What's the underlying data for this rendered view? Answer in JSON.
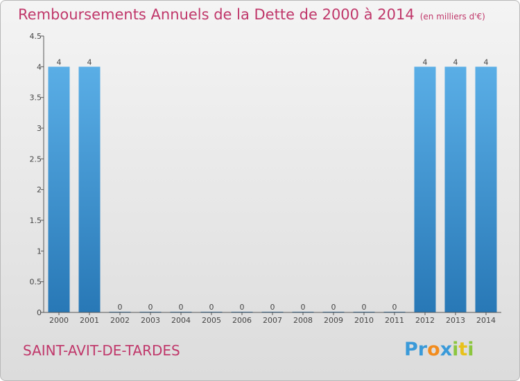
{
  "chart_data": {
    "type": "bar",
    "title": "Remboursements Annuels de la Dette de 2000 à 2014",
    "subtitle": "(en milliers d'€)",
    "categories": [
      "2000",
      "2001",
      "2002",
      "2003",
      "2004",
      "2005",
      "2006",
      "2007",
      "2008",
      "2009",
      "2010",
      "2011",
      "2012",
      "2013",
      "2014"
    ],
    "values": [
      4,
      4,
      0,
      0,
      0,
      0,
      0,
      0,
      0,
      0,
      0,
      0,
      4,
      4,
      4
    ],
    "ylim": [
      0,
      4.5
    ],
    "yticks": [
      0,
      0.5,
      1,
      1.5,
      2,
      2.5,
      3,
      3.5,
      4,
      4.5
    ],
    "ytick_labels": [
      "0",
      "0.5",
      "1",
      "1.5",
      "2",
      "2.5",
      "3",
      "3.5",
      "4",
      "4.5"
    ],
    "xlabel": "",
    "ylabel": "",
    "grid": false
  },
  "footer": {
    "location": "SAINT-AVIT-DE-TARDES"
  },
  "logo": {
    "letters": [
      "P",
      "r",
      "o",
      "x",
      "i",
      "t",
      "i"
    ],
    "colors": [
      "#3a9ad9",
      "#3a9ad9",
      "#f28c1e",
      "#3a9ad9",
      "#8cc63f",
      "#e8c11b",
      "#8cc63f"
    ]
  },
  "colors": {
    "title": "#c0376a",
    "bar_light": "#5aaee6",
    "bar_dark": "#2878b6",
    "axis": "#555555"
  }
}
